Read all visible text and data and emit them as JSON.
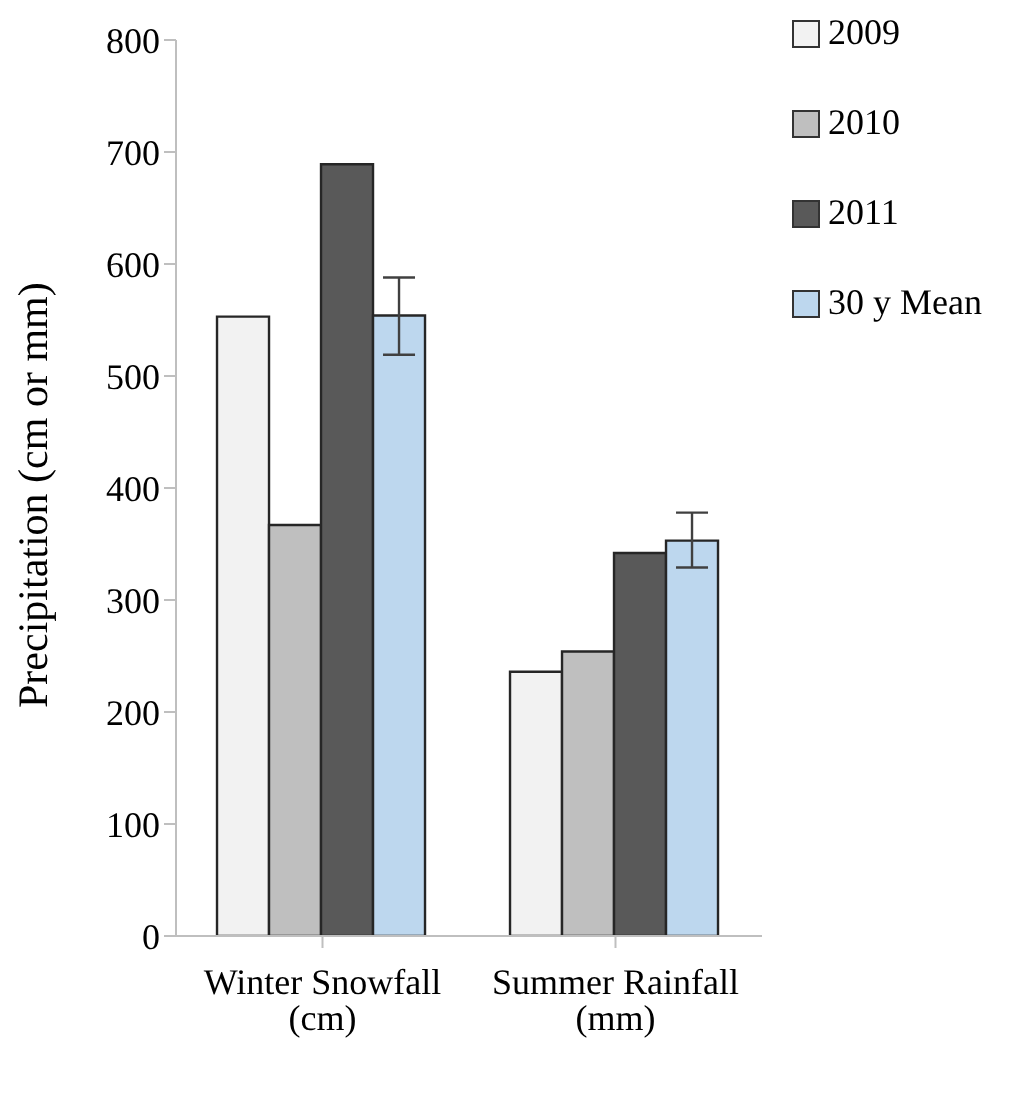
{
  "chart_data": {
    "type": "bar",
    "ylabel": "Precipitation (cm or mm)",
    "categories": [
      "Winter Snowfall (cm)",
      "Summer Rainfall (mm)"
    ],
    "series": [
      {
        "name": "2009",
        "color": "#f2f2f2",
        "values": [
          553,
          236
        ]
      },
      {
        "name": "2010",
        "color": "#bfbfbf",
        "values": [
          367,
          254
        ]
      },
      {
        "name": "2011",
        "color": "#595959",
        "values": [
          689,
          342
        ]
      },
      {
        "name": "30 y Mean",
        "color": "#bdd7ee",
        "values": [
          554,
          353
        ],
        "errors": [
          [
            519,
            588
          ],
          [
            329,
            378
          ]
        ]
      }
    ],
    "ylim": [
      0,
      800
    ],
    "yticks": [
      0,
      100,
      200,
      300,
      400,
      500,
      600,
      700,
      800
    ],
    "legend": "top right"
  }
}
